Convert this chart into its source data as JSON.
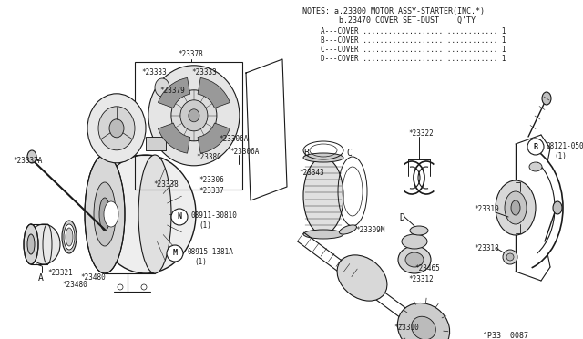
{
  "bg_color": "#ffffff",
  "line_color": "#1a1a1a",
  "notes_line1": "NOTES: a.23300 MOTOR ASSY-STARTER(INC.*)",
  "notes_line2": "        b.23470 COVER SET-DUST    Q'TY",
  "notes_line3a": "          A---COVER ................................ 1",
  "notes_line3b": "          B---COVER ................................ 1",
  "notes_line3c": "          C---COVER ................................ 1",
  "notes_line3d": "          D---COVER ................................ 1",
  "footer": "^P33  0087"
}
